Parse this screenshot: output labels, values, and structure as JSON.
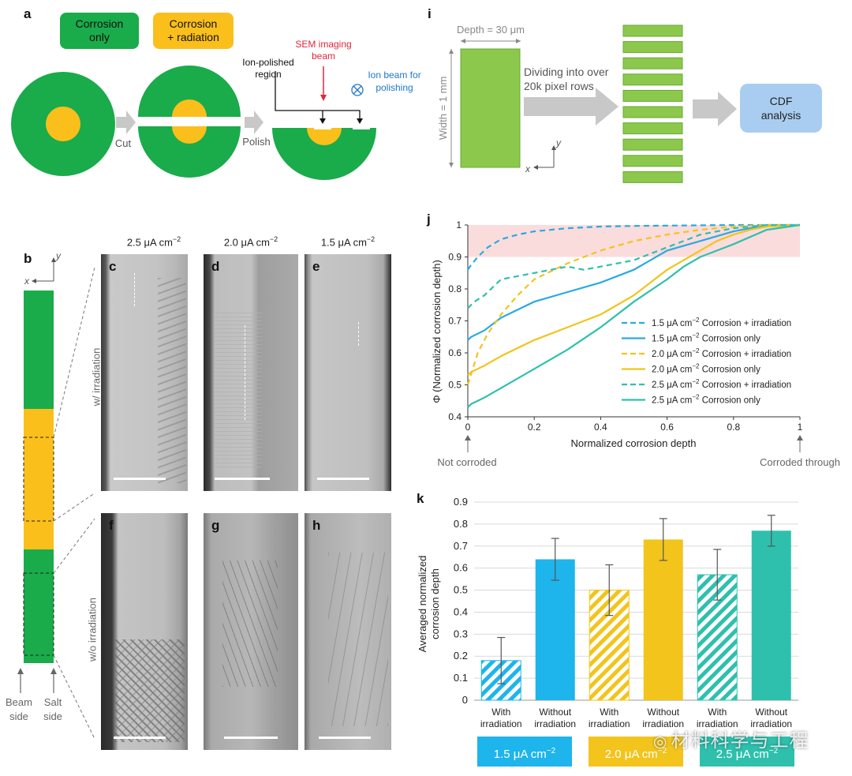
{
  "panel_a": {
    "letter": "a",
    "legend_corrosion_only": "Corrosion\nonly",
    "legend_corrosion_only_l1": "Corrosion",
    "legend_corrosion_only_l2": "only",
    "legend_corrosion_radiation_l1": "Corrosion",
    "legend_corrosion_radiation_l2": "+ radiation",
    "cut_label": "Cut",
    "polish_label": "Polish",
    "ion_polished_l1": "Ion-polished",
    "ion_polished_l2": "region",
    "sem_beam_l1": "SEM imaging",
    "sem_beam_l2": "beam",
    "ion_beam_l1": "Ion beam for",
    "ion_beam_l2": "polishing",
    "colors": {
      "green": "#1aab4b",
      "yellow": "#fbbf1c",
      "arrow": "#c8c8c8",
      "red": "#e0273a",
      "blue": "#1f78c8"
    }
  },
  "panel_i": {
    "letter": "i",
    "depth_label": "Depth = 30 μm",
    "width_label": "Width = 1 mm",
    "divide_l1": "Dividing into over",
    "divide_l2": "20k pixel rows",
    "cdf_l1": "CDF",
    "cdf_l2": "analysis",
    "axis_y": "y",
    "axis_x": "x",
    "colors": {
      "rect": "#8cc84b",
      "cdf_box": "#a9cdf0"
    }
  },
  "panel_b": {
    "letter": "b",
    "axis_y": "y",
    "axis_x": "x",
    "beam_side_l1": "Beam",
    "beam_side_l2": "side",
    "salt_side_l1": "Salt",
    "salt_side_l2": "side"
  },
  "sem_panels": {
    "col_headers": [
      "2.5 μA cm",
      "2.0 μA cm",
      "1.5 μA cm"
    ],
    "col_header_sup": "−2",
    "row_w_label": "w/ irradiation",
    "row_wo_label": "w/o irradiation",
    "letters_top": [
      "c",
      "d",
      "e"
    ],
    "letters_bottom": [
      "f",
      "g",
      "h"
    ]
  },
  "chart_data": [
    {
      "id": "j",
      "type": "line",
      "title": "",
      "xlabel": "Normalized corrosion depth",
      "ylabel": "Φ (Normalized corrosion depth)",
      "xlim": [
        0,
        1
      ],
      "ylim": [
        0.4,
        1.0
      ],
      "xticks": [
        "0",
        "0.2",
        "0.4",
        "0.6",
        "0.8",
        "1"
      ],
      "yticks": [
        "0.4",
        "0.5",
        "0.6",
        "0.7",
        "0.8",
        "0.9",
        "1"
      ],
      "highlight_band": [
        0.9,
        1.0
      ],
      "annotation_left": "Not corroded",
      "annotation_right": "Corroded through",
      "series": [
        {
          "name": "1.5 μA cm⁻² Corrosion + irradiation",
          "label_main": "1.5 μA cm",
          "label_rest": " Corrosion + irradiation",
          "dash": true,
          "color": "#2aaae2",
          "x": [
            0,
            0.01,
            0.03,
            0.06,
            0.1,
            0.15,
            0.2,
            0.3,
            0.4,
            0.5,
            0.6,
            0.7,
            0.8,
            0.9,
            1.0
          ],
          "y": [
            0.86,
            0.875,
            0.9,
            0.93,
            0.955,
            0.97,
            0.98,
            0.99,
            0.995,
            0.997,
            0.998,
            0.999,
            1.0,
            1.0,
            1.0
          ]
        },
        {
          "name": "1.5 μA cm⁻² Corrosion only",
          "label_main": "1.5 μA cm",
          "label_rest": " Corrosion only",
          "dash": false,
          "color": "#2aaae2",
          "x": [
            0,
            0.01,
            0.05,
            0.1,
            0.2,
            0.3,
            0.4,
            0.5,
            0.55,
            0.6,
            0.7,
            0.8,
            0.85,
            0.9,
            1.0
          ],
          "y": [
            0.64,
            0.65,
            0.67,
            0.71,
            0.76,
            0.79,
            0.82,
            0.86,
            0.89,
            0.92,
            0.95,
            0.98,
            0.99,
            0.997,
            1.0
          ]
        },
        {
          "name": "2.0 μA cm⁻² Corrosion + irradiation",
          "label_main": "2.0 μA cm",
          "label_rest": " Corrosion + irradiation",
          "dash": true,
          "color": "#f2c41c",
          "x": [
            0,
            0.03,
            0.06,
            0.1,
            0.15,
            0.2,
            0.3,
            0.4,
            0.5,
            0.6,
            0.7,
            0.8,
            0.9,
            1.0
          ],
          "y": [
            0.5,
            0.6,
            0.66,
            0.72,
            0.78,
            0.83,
            0.88,
            0.92,
            0.95,
            0.97,
            0.985,
            0.995,
            1.0,
            1.0
          ]
        },
        {
          "name": "2.0 μA cm⁻² Corrosion only",
          "label_main": "2.0 μA cm",
          "label_rest": " Corrosion only",
          "dash": false,
          "color": "#f2c41c",
          "x": [
            0,
            0.01,
            0.05,
            0.1,
            0.2,
            0.3,
            0.4,
            0.5,
            0.6,
            0.7,
            0.75,
            0.8,
            0.85,
            0.9,
            1.0
          ],
          "y": [
            0.53,
            0.54,
            0.56,
            0.59,
            0.64,
            0.68,
            0.72,
            0.78,
            0.86,
            0.92,
            0.95,
            0.97,
            0.985,
            0.995,
            1.0
          ]
        },
        {
          "name": "2.5 μA cm⁻² Corrosion + irradiation",
          "label_main": "2.5 μA cm",
          "label_rest": " Corrosion + irradiation",
          "dash": true,
          "color": "#2ec0ad",
          "x": [
            0,
            0.02,
            0.05,
            0.1,
            0.2,
            0.3,
            0.35,
            0.4,
            0.5,
            0.6,
            0.7,
            0.8,
            0.9,
            1.0
          ],
          "y": [
            0.74,
            0.76,
            0.78,
            0.83,
            0.85,
            0.87,
            0.86,
            0.87,
            0.89,
            0.93,
            0.97,
            0.99,
            1.0,
            1.0
          ]
        },
        {
          "name": "2.5 μA cm⁻² Corrosion only",
          "label_main": "2.5 μA cm",
          "label_rest": " Corrosion only",
          "dash": false,
          "color": "#2ec0ad",
          "x": [
            0,
            0.01,
            0.05,
            0.1,
            0.2,
            0.3,
            0.4,
            0.5,
            0.6,
            0.65,
            0.7,
            0.75,
            0.8,
            0.9,
            1.0
          ],
          "y": [
            0.43,
            0.44,
            0.46,
            0.49,
            0.55,
            0.61,
            0.68,
            0.76,
            0.83,
            0.87,
            0.9,
            0.92,
            0.94,
            0.985,
            1.0
          ]
        }
      ]
    },
    {
      "id": "k",
      "type": "bar",
      "title": "",
      "ylabel_l1": "Averaged normalized",
      "ylabel_l2": "corrosion depth",
      "ylim": [
        0,
        0.9
      ],
      "yticks": [
        "0",
        "0.1",
        "0.2",
        "0.3",
        "0.4",
        "0.5",
        "0.6",
        "0.7",
        "0.8",
        "0.9"
      ],
      "categories": [
        "With irradiation",
        "Without irradiation",
        "With irradiation",
        "Without irradiation",
        "With irradiation",
        "Without irradiation"
      ],
      "category_l1": [
        "With",
        "Without",
        "With",
        "Without",
        "With",
        "Without"
      ],
      "category_l2": [
        "irradiation",
        "irradiation",
        "irradiation",
        "irradiation",
        "irradiation",
        "irradiation"
      ],
      "values": [
        0.18,
        0.64,
        0.5,
        0.73,
        0.57,
        0.77
      ],
      "errors": [
        0.105,
        0.095,
        0.115,
        0.095,
        0.115,
        0.07
      ],
      "hatched": [
        true,
        false,
        true,
        false,
        true,
        false
      ],
      "colors": [
        "#1eb4ec",
        "#1eb4ec",
        "#f2c41c",
        "#f2c41c",
        "#2ec0ad",
        "#2ec0ad"
      ],
      "groups": [
        {
          "label": "1.5 μA cm",
          "sup": "−2",
          "color": "#1eb4ec"
        },
        {
          "label": "2.0 μA cm",
          "sup": "−2",
          "color": "#f2c41c"
        },
        {
          "label": "2.5 μA cm",
          "sup": "−2",
          "color": "#2ec0ad"
        }
      ]
    }
  ],
  "watermark": "材料科学与工程"
}
